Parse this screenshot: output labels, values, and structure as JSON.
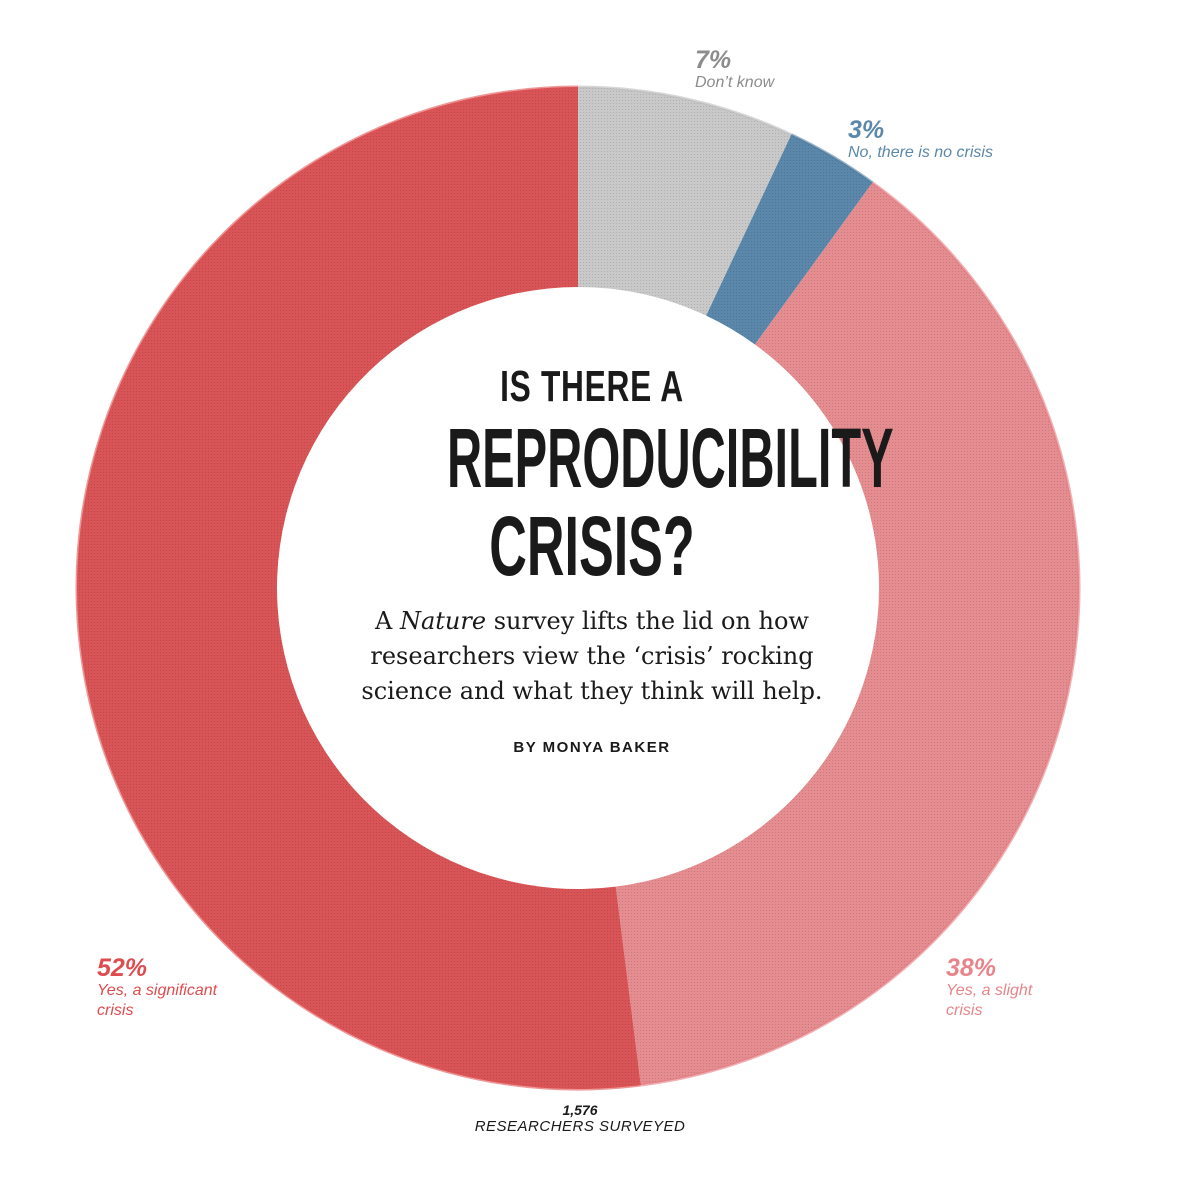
{
  "chart_data": {
    "type": "pie",
    "variant": "donut",
    "slices": [
      {
        "label": "Don’t know",
        "percent_label": "7%",
        "value": 7,
        "color": "#c9c9c9",
        "stroke": "#bdbdbd"
      },
      {
        "label": "No, there is no crisis",
        "percent_label": "3%",
        "value": 3,
        "color": "#5b88aa",
        "stroke": "#4e7a9c"
      },
      {
        "label": "Yes, a slight crisis",
        "percent_label": "38%",
        "value": 38,
        "color": "#e58d90",
        "stroke": "#e47d83"
      },
      {
        "label": "Yes, a significant crisis",
        "percent_label": "52%",
        "value": 52,
        "color": "#d95456",
        "stroke": "#e05355"
      }
    ],
    "start": "top, clockwise"
  },
  "title": {
    "line1": "IS THERE A",
    "line2": "REPRODUCIBILITY",
    "line3": "CRISIS?"
  },
  "dek": {
    "prefix": "A ",
    "italic": "Nature",
    "suffix": " survey lifts the lid on how researchers view the ‘crisis’ rocking science and what they think will help."
  },
  "byline": "BY MONYA BAKER",
  "total": {
    "number": "1,576",
    "label": "RESEARCHERS SURVEYED"
  }
}
